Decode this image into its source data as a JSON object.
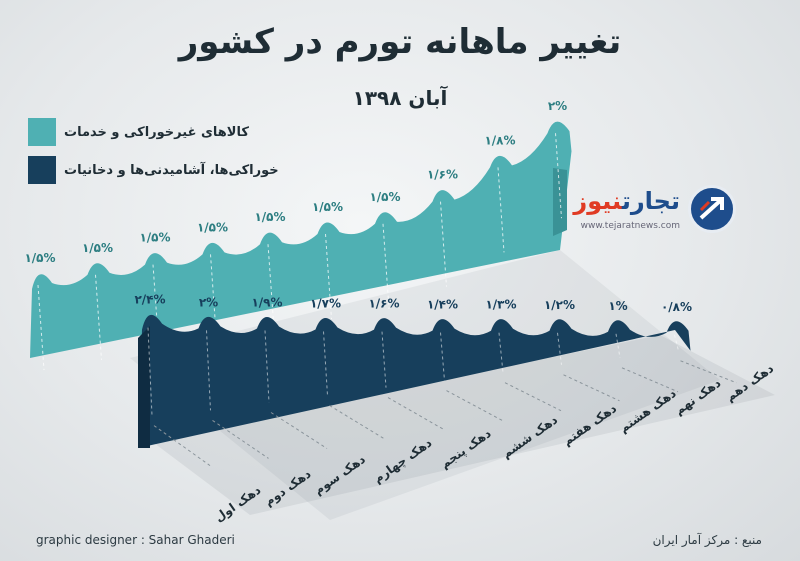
{
  "title": "تغییر ماهانه تورم در کشور",
  "subtitle": "آبان ۱۳۹۸",
  "legend": [
    {
      "label": "کالاهای غیرخوراکی و خدمات",
      "color": "#4fb0b3"
    },
    {
      "label": "خوراکی‌ها، آشامیدنی‌ها و دخانیات",
      "color": "#173f5c"
    }
  ],
  "logo": {
    "name_part1": "تجارت",
    "name_part2": "نیوز",
    "url": "www.tejaratnews.com"
  },
  "footer": {
    "designer": "graphic designer : Sahar Ghaderi",
    "source": "منبع : مرکز آمار ایران"
  },
  "colors": {
    "teal": "#4fb0b3",
    "teal_dark": "#3a9296",
    "navy": "#173f5c",
    "navy_dark": "#0f2c42"
  },
  "chart_data": {
    "type": "area",
    "categories": [
      "دهک اول",
      "دهک دوم",
      "دهک سوم",
      "دهک چهارم",
      "دهک پنجم",
      "دهک ششم",
      "دهک هفتم",
      "دهک هشتم",
      "دهک نهم",
      "دهک دهم"
    ],
    "series": [
      {
        "name": "کالاهای غیرخوراکی و خدمات",
        "values": [
          1.5,
          1.5,
          1.5,
          1.5,
          1.5,
          1.5,
          1.5,
          1.6,
          1.8,
          2.0
        ],
        "labels": [
          "۱/۵%",
          "۱/۵%",
          "۱/۵%",
          "۱/۵%",
          "۱/۵%",
          "۱/۵%",
          "۱/۵%",
          "۱/۶%",
          "۱/۸%",
          "۲%"
        ]
      },
      {
        "name": "خوراکی‌ها، آشامیدنی‌ها و دخانیات",
        "values": [
          2.4,
          2.0,
          1.9,
          1.7,
          1.6,
          1.4,
          1.3,
          1.2,
          1.0,
          0.8
        ],
        "labels": [
          "۲/۴%",
          "۲%",
          "۱/۹%",
          "۱/۷%",
          "۱/۶%",
          "۱/۴%",
          "۱/۳%",
          "۱/۲%",
          "۱%",
          "۰/۸%"
        ]
      }
    ],
    "legend_position": "top-left",
    "grid": false
  }
}
